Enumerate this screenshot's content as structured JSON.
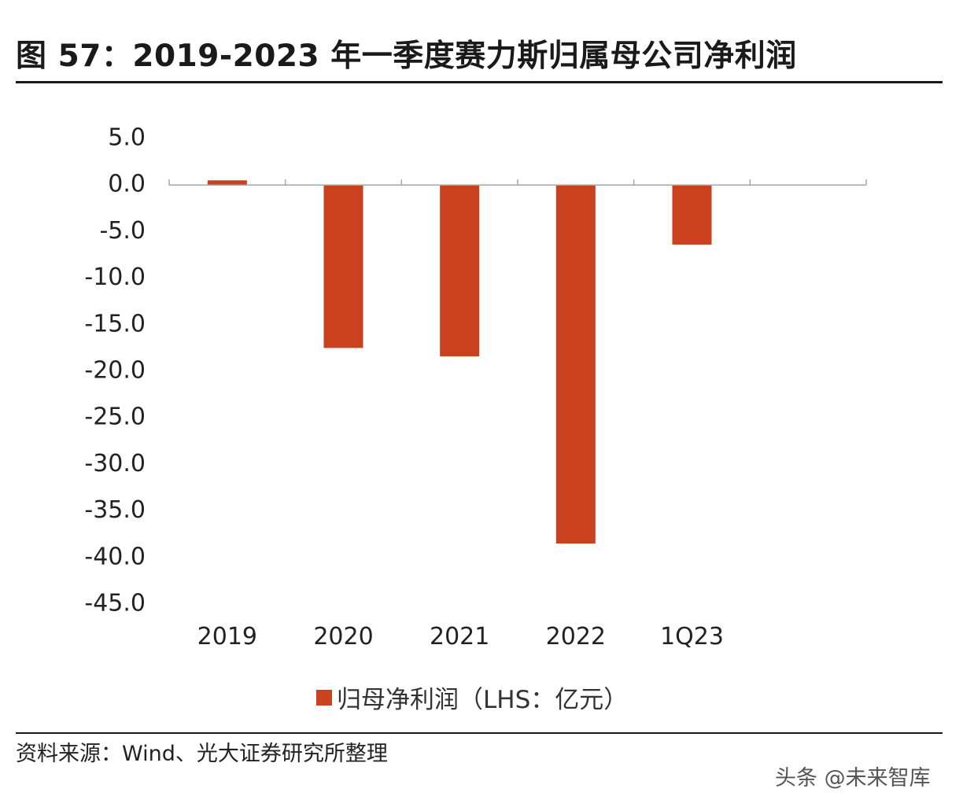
{
  "title": "图 57：2019-2023 年一季度赛力斯归属母公司净利润",
  "source": "资料来源：Wind、光大证券研究所整理",
  "watermark": "头条 @未来智库",
  "colors": {
    "bar": "#c9411f",
    "axis": "#a6a6a6",
    "rule": "#1a1a1a"
  },
  "chart_data": {
    "type": "bar",
    "categories": [
      "2019",
      "2020",
      "2021",
      "2022",
      "1Q23"
    ],
    "series": [
      {
        "name": "归母净利润（LHS：亿元）",
        "values": [
          0.5,
          -17.5,
          -18.4,
          -38.5,
          -6.4
        ]
      }
    ],
    "ylim": [
      -45.0,
      5.0
    ],
    "yticks": [
      "5.0",
      "0.0",
      "-5.0",
      "-10.0",
      "-15.0",
      "-20.0",
      "-25.0",
      "-30.0",
      "-35.0",
      "-40.0",
      "-45.0"
    ],
    "legend_position": "bottom",
    "grid": false
  }
}
